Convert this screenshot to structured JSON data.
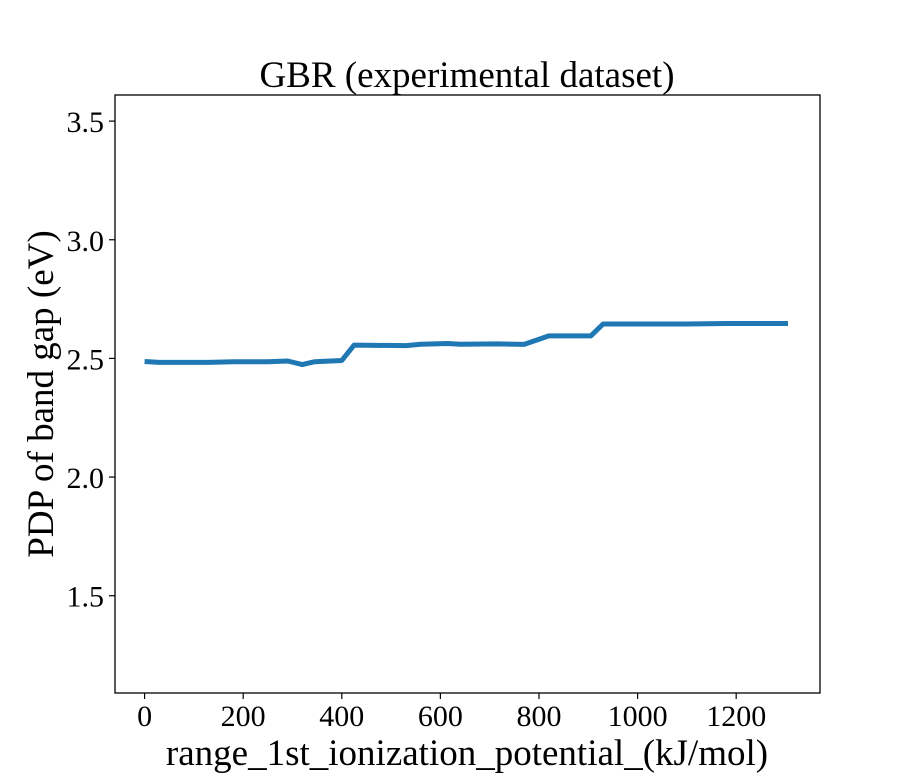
{
  "chart_data": {
    "type": "line",
    "title": "GBR (experimental dataset)",
    "xlabel": "range_1st_ionization_potential_(kJ/mol)",
    "ylabel": "PDP of band gap (eV)",
    "xlim": [
      -60,
      1370
    ],
    "ylim": [
      1.09,
      3.61
    ],
    "xticks": [
      0,
      200,
      400,
      600,
      800,
      1000,
      1200
    ],
    "xtick_labels": [
      "0",
      "200",
      "400",
      "600",
      "800",
      "1000",
      "1200"
    ],
    "yticks": [
      1.5,
      2.0,
      2.5,
      3.0,
      3.5
    ],
    "ytick_labels": [
      "1.5",
      "2.0",
      "2.5",
      "3.0",
      "3.5"
    ],
    "grid": false,
    "legend": false,
    "series": [
      {
        "color": "#1f77b4",
        "x": [
          0,
          30,
          130,
          180,
          250,
          290,
          320,
          345,
          400,
          425,
          470,
          530,
          560,
          615,
          640,
          715,
          770,
          820,
          905,
          930,
          1100,
          1180,
          1305
        ],
        "y": [
          2.487,
          2.483,
          2.483,
          2.486,
          2.486,
          2.489,
          2.474,
          2.486,
          2.491,
          2.556,
          2.555,
          2.554,
          2.56,
          2.563,
          2.56,
          2.561,
          2.559,
          2.595,
          2.595,
          2.645,
          2.645,
          2.647,
          2.647
        ]
      }
    ]
  }
}
